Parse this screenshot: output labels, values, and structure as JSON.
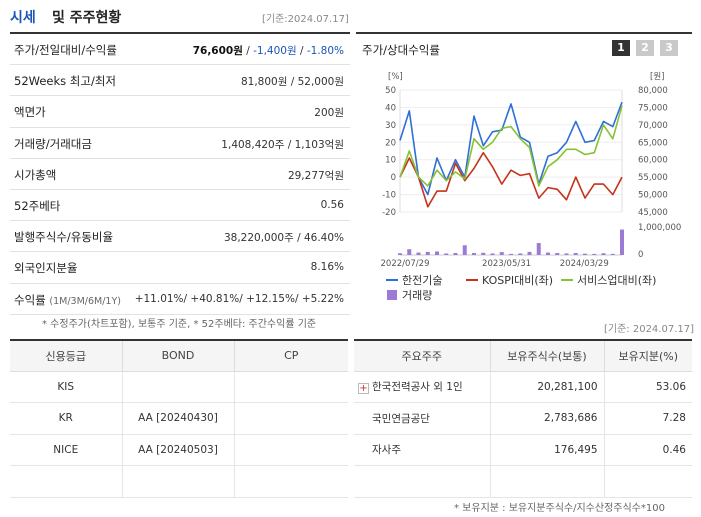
{
  "header": {
    "title_a": "시세",
    "title_b": "및 주주현황",
    "date": "[기준:2024.07.17]"
  },
  "quote": [
    {
      "key": "주가/전일대비/수익률",
      "value_main": "76,600원",
      "value_sep": " / ",
      "value_chg": "-1,400원",
      "value_sep2": " / ",
      "value_pct": "-1.80%"
    },
    {
      "key": "52Weeks 최고/최저",
      "value": "81,800원 / 52,000원"
    },
    {
      "key": "액면가",
      "value": "200원"
    },
    {
      "key": "거래량/거래대금",
      "value": "1,408,420주 / 1,103억원"
    },
    {
      "key": "시가총액",
      "value": "29,277억원"
    },
    {
      "key": "52주베타",
      "value": "0.56"
    },
    {
      "key": "발행주식수/유동비율",
      "value": "38,220,000주 / 46.40%"
    },
    {
      "key": "외국인지분율",
      "value": "8.16%"
    },
    {
      "key": "수익률",
      "key_sub": "(1M/3M/6M/1Y)",
      "value": "+11.01%/ +40.81%/ +12.15%/ +5.22%"
    }
  ],
  "notes": {
    "quote_note": "* 수정주가(차트포함), 보통주 기준, * 52주베타: 주간수익률 기준",
    "date2": "[기준: 2024.07.17]",
    "holder_note": "* 보유지분 : 보유지분주식수/지수산정주식수*100"
  },
  "chart_panel": {
    "title": "주가/상대수익률",
    "tabs": [
      "1",
      "2",
      "3"
    ],
    "active_tab": 0
  },
  "chart_data": {
    "type": "line",
    "left_unit": "[%]",
    "right_unit": "[원]",
    "left_ticks": [
      "50",
      "40",
      "30",
      "20",
      "10",
      "0",
      "-10",
      "-20"
    ],
    "right_ticks": [
      "80,000",
      "75,000",
      "70,000",
      "65,000",
      "60,000",
      "55,000",
      "50,000",
      "45,000"
    ],
    "volume_ticks": [
      "1,000,000",
      "0"
    ],
    "x_labels": [
      "2022/07/29",
      "2023/05/31",
      "2024/03/29"
    ],
    "ylim_left": [
      -20,
      50
    ],
    "series": [
      {
        "name": "한전기술",
        "color": "#2f6fd6",
        "values": [
          21,
          38,
          0,
          -10,
          11,
          -2,
          10,
          0,
          35,
          18,
          26,
          27,
          42,
          23,
          20,
          -4,
          12,
          14,
          20,
          32,
          20,
          21,
          32,
          29,
          43
        ]
      },
      {
        "name": "KOSPI대비(좌)",
        "color": "#c4331b",
        "values": [
          0,
          11,
          0,
          -17,
          -8,
          -8,
          8,
          -2,
          5,
          14,
          6,
          -4,
          4,
          1,
          2,
          -12,
          -6,
          -7,
          -13,
          0,
          -12,
          -4,
          -4,
          -10,
          0
        ]
      },
      {
        "name": "서비스업대비(좌)",
        "color": "#86c233",
        "values": [
          0,
          15,
          0,
          -5,
          4,
          -2,
          3,
          -1,
          22,
          16,
          20,
          28,
          29,
          22,
          17,
          -5,
          6,
          10,
          16,
          16,
          13,
          14,
          30,
          22,
          41
        ]
      }
    ],
    "volume": {
      "name": "거래량",
      "color": "#9c7bd6",
      "values": [
        80000,
        260000,
        110000,
        140000,
        160000,
        70000,
        90000,
        440000,
        90000,
        100000,
        70000,
        130000,
        50000,
        70000,
        140000,
        540000,
        110000,
        90000,
        70000,
        90000,
        60000,
        50000,
        80000,
        50000,
        1150000
      ]
    },
    "volume_max": 1400000
  },
  "credit": {
    "headers": [
      "신용등급",
      "BOND",
      "CP"
    ],
    "rows": [
      [
        "KIS",
        "",
        ""
      ],
      [
        "KR",
        "AA [20240430]",
        ""
      ],
      [
        "NICE",
        "AA [20240503]",
        ""
      ],
      [
        "",
        "",
        ""
      ]
    ]
  },
  "holders": {
    "headers": [
      "주요주주",
      "보유주식수(보통)",
      "보유지분(%)"
    ],
    "rows": [
      {
        "name": "한국전력공사 외 1인",
        "shares": "20,281,100",
        "pct": "53.06",
        "expand": "+"
      },
      {
        "name": "국민연금공단",
        "shares": "2,783,686",
        "pct": "7.28"
      },
      {
        "name": "자사주",
        "shares": "176,495",
        "pct": "0.46"
      },
      {
        "name": "",
        "shares": "",
        "pct": ""
      }
    ]
  }
}
